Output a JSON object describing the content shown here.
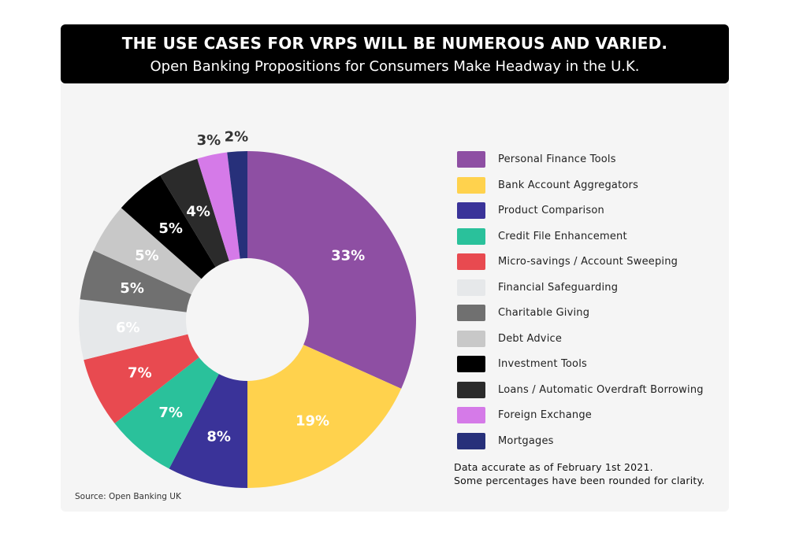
{
  "header": {
    "title": "THE USE CASES FOR VRPS WILL BE NUMEROUS AND VARIED.",
    "subtitle": "Open Banking Propositions for Consumers Make Headway in the U.K."
  },
  "chart_data": {
    "type": "pie",
    "donut": true,
    "categories": [
      "Personal Finance Tools",
      "Bank Account Aggregators",
      "Product Comparison",
      "Credit File Enhancement",
      "Micro-savings / Account Sweeping",
      "Financial Safeguarding",
      "Charitable Giving",
      "Debt Advice",
      "Investment Tools",
      "Loans / Automatic Overdraft Borrowing",
      "Foreign Exchange",
      "Mortgages"
    ],
    "values": [
      33,
      19,
      8,
      7,
      7,
      6,
      5,
      5,
      5,
      4,
      3,
      2
    ],
    "labels": [
      "33%",
      "19%",
      "8%",
      "7%",
      "7%",
      "6%",
      "5%",
      "5%",
      "5%",
      "4%",
      "3%",
      "2%"
    ],
    "colors": [
      "#8E4FA3",
      "#FFD24D",
      "#3A3399",
      "#2AC19B",
      "#E84A50",
      "#E6E8EA",
      "#707070",
      "#C8C8C8",
      "#000000",
      "#2B2B2B",
      "#D57AE8",
      "#27307A"
    ],
    "label_colors": [
      "#ffffff",
      "#ffffff",
      "#ffffff",
      "#ffffff",
      "#ffffff",
      "#ffffff",
      "#ffffff",
      "#ffffff",
      "#ffffff",
      "#ffffff",
      "#333333",
      "#333333"
    ],
    "legend_position": "right"
  },
  "note": {
    "line1": "Data accurate as of February 1st 2021.",
    "line2": "Some percentages have been rounded for clarity."
  },
  "source": "Source: Open Banking UK"
}
